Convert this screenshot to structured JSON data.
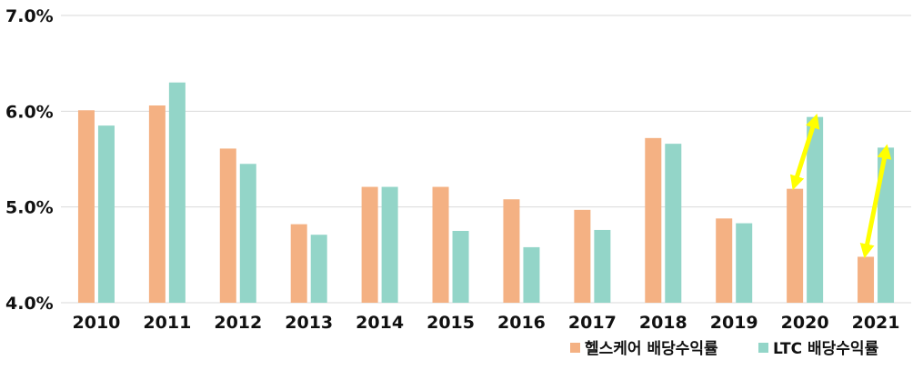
{
  "chart_data": {
    "type": "bar",
    "categories": [
      "2010",
      "2011",
      "2012",
      "2013",
      "2014",
      "2015",
      "2016",
      "2017",
      "2018",
      "2019",
      "2020",
      "2021"
    ],
    "series": [
      {
        "name": "헬스케어 배당수익률",
        "color": "#F4B183",
        "values": [
          6.01,
          6.06,
          5.61,
          4.82,
          5.21,
          5.21,
          5.08,
          4.97,
          5.72,
          4.88,
          5.19,
          4.48
        ]
      },
      {
        "name": "LTC 배당수익률",
        "color": "#93D5C8",
        "values": [
          5.85,
          6.3,
          5.45,
          4.71,
          5.21,
          4.75,
          4.58,
          4.76,
          5.66,
          4.83,
          5.94,
          5.62
        ]
      }
    ],
    "ylim": [
      4.0,
      7.0
    ],
    "yticks": [
      "4.0%",
      "5.0%",
      "6.0%",
      "7.0%"
    ],
    "grid": true,
    "legend_position": "bottom-right",
    "annotation_color": "#FFFF00",
    "annotations": [
      {
        "type": "double-arrow",
        "category": "2020"
      },
      {
        "type": "double-arrow",
        "category": "2021"
      }
    ]
  }
}
